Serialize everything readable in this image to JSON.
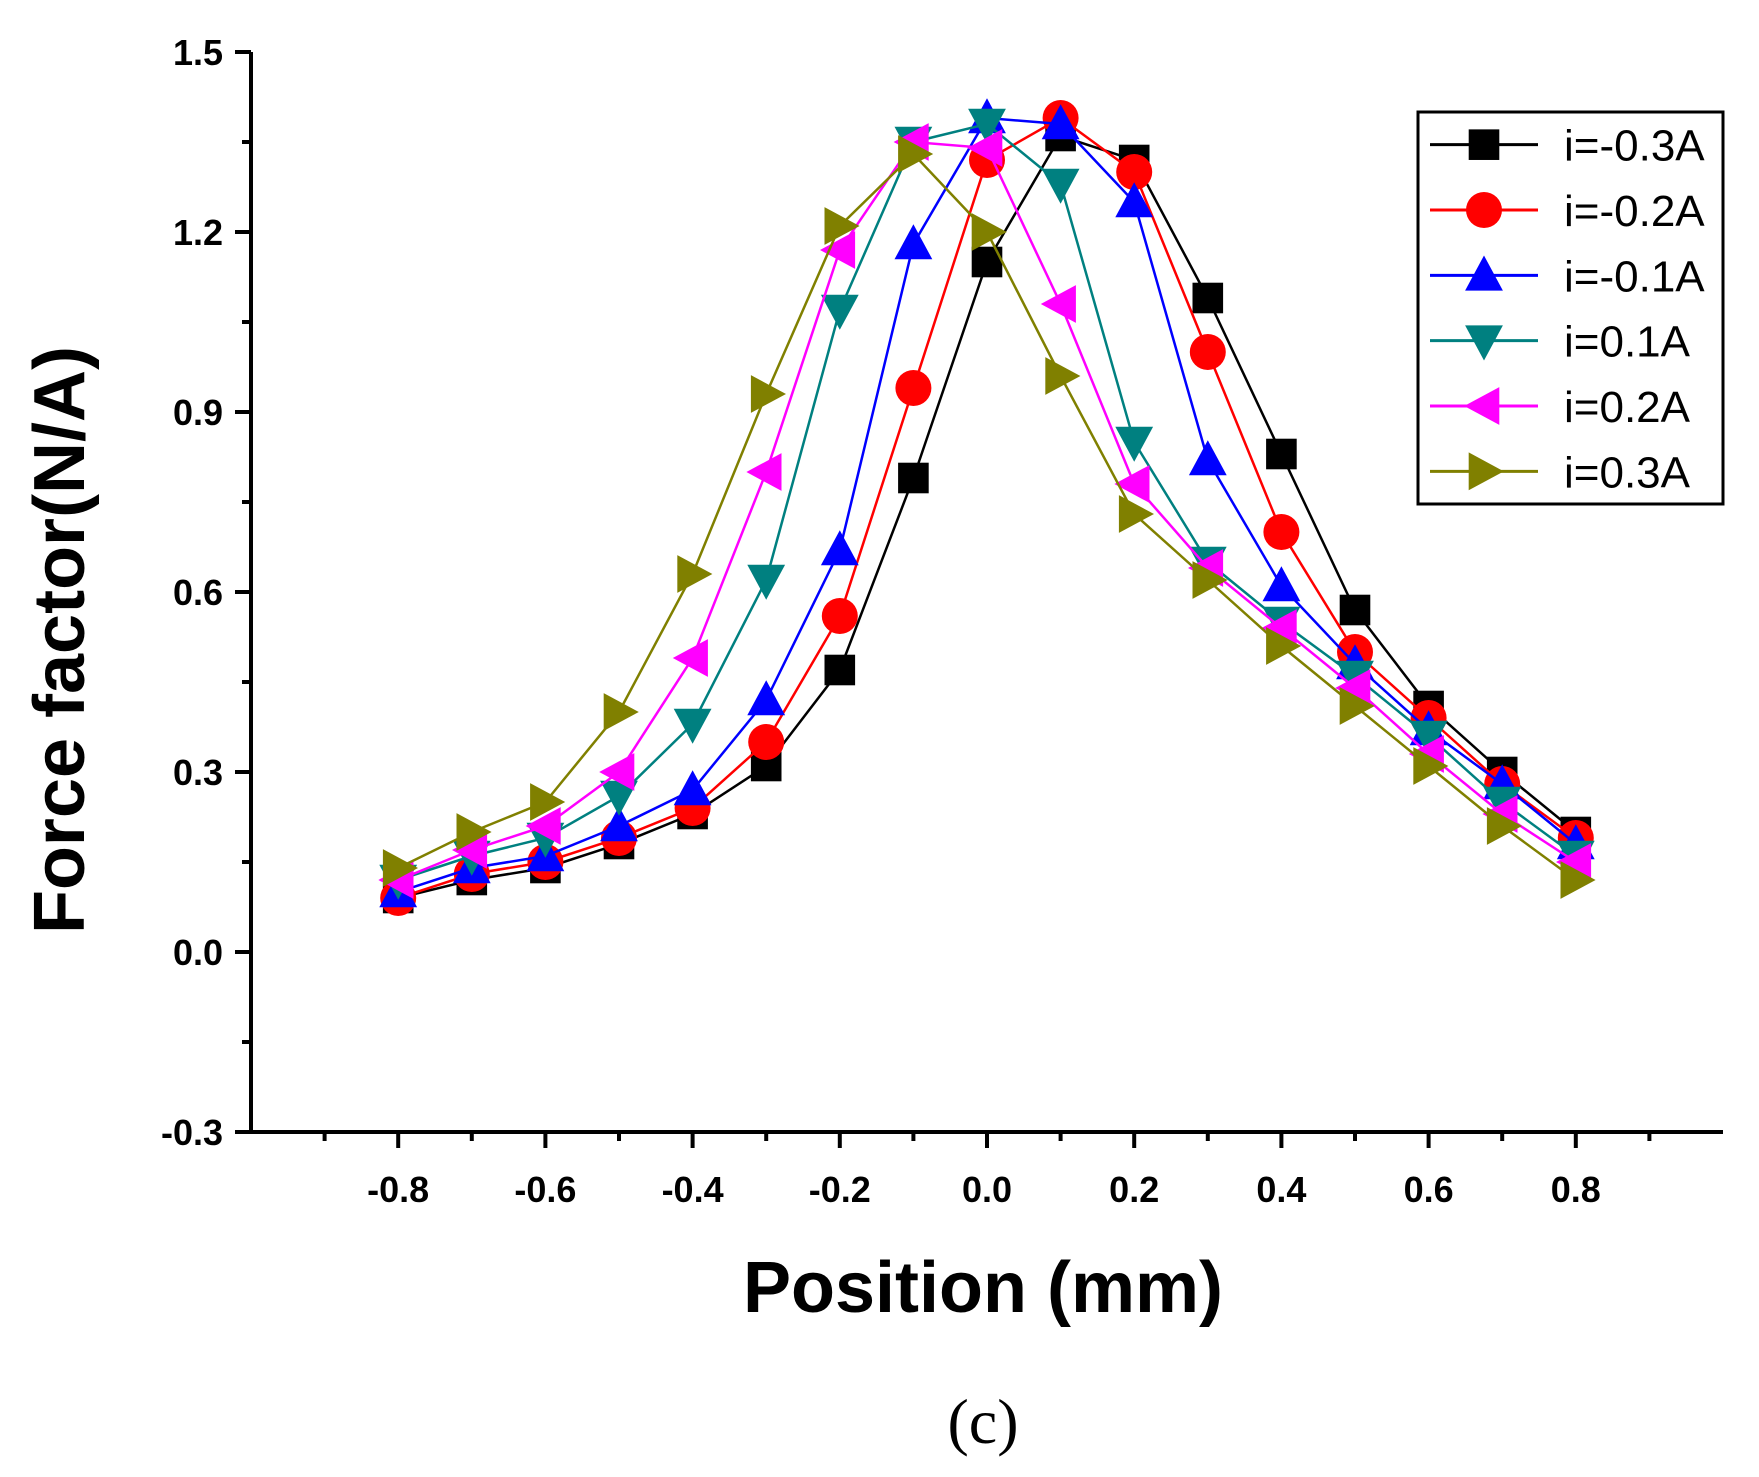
{
  "chart_data": {
    "type": "line",
    "title": "",
    "xlabel": "Position (mm)",
    "ylabel": "Force factor(N/A)",
    "caption": "(c)",
    "xlim": [
      -1.0,
      1.0
    ],
    "ylim": [
      -0.3,
      1.5
    ],
    "x_ticks": [
      -0.8,
      -0.6,
      -0.4,
      -0.2,
      0.0,
      0.2,
      0.4,
      0.6,
      0.8
    ],
    "x_tick_labels": [
      "-0.8",
      "-0.6",
      "-0.4",
      "-0.2",
      "0.0",
      "0.2",
      "0.4",
      "0.6",
      "0.8"
    ],
    "y_ticks": [
      -0.3,
      0.0,
      0.3,
      0.6,
      0.9,
      1.2,
      1.5
    ],
    "y_tick_labels": [
      "-0.3",
      "0.0",
      "0.3",
      "0.6",
      "0.9",
      "1.2",
      "1.5"
    ],
    "grid": false,
    "legend_position": "top-right",
    "x": [
      -0.8,
      -0.7,
      -0.6,
      -0.5,
      -0.4,
      -0.3,
      -0.2,
      -0.1,
      0.0,
      0.1,
      0.2,
      0.3,
      0.4,
      0.5,
      0.6,
      0.7,
      0.8
    ],
    "series": [
      {
        "name": "i=-0.3A",
        "color": "#000000",
        "marker": "square",
        "values": [
          0.09,
          0.12,
          0.14,
          0.18,
          0.23,
          0.31,
          0.47,
          0.79,
          1.15,
          1.36,
          1.32,
          1.09,
          0.83,
          0.57,
          0.41,
          0.3,
          0.2
        ]
      },
      {
        "name": "i=-0.2A",
        "color": "#ff0000",
        "marker": "circle",
        "values": [
          0.09,
          0.13,
          0.15,
          0.19,
          0.24,
          0.35,
          0.56,
          0.94,
          1.32,
          1.39,
          1.3,
          1.0,
          0.7,
          0.5,
          0.39,
          0.28,
          0.19
        ]
      },
      {
        "name": "i=-0.1A",
        "color": "#0000ff",
        "marker": "triangle-up",
        "values": [
          0.1,
          0.14,
          0.16,
          0.21,
          0.27,
          0.42,
          0.67,
          1.18,
          1.39,
          1.38,
          1.25,
          0.82,
          0.61,
          0.48,
          0.37,
          0.28,
          0.18
        ]
      },
      {
        "name": "i=0.1A",
        "color": "#008080",
        "marker": "triangle-down",
        "values": [
          0.12,
          0.16,
          0.19,
          0.26,
          0.38,
          0.62,
          1.07,
          1.35,
          1.38,
          1.28,
          0.85,
          0.65,
          0.55,
          0.46,
          0.36,
          0.25,
          0.16
        ]
      },
      {
        "name": "i=0.2A",
        "color": "#ff00ff",
        "marker": "triangle-left",
        "values": [
          0.12,
          0.17,
          0.21,
          0.3,
          0.49,
          0.8,
          1.17,
          1.35,
          1.34,
          1.08,
          0.78,
          0.64,
          0.54,
          0.44,
          0.33,
          0.23,
          0.15
        ]
      },
      {
        "name": "i=0.3A",
        "color": "#808000",
        "marker": "triangle-right",
        "values": [
          0.14,
          0.2,
          0.25,
          0.4,
          0.63,
          0.93,
          1.21,
          1.33,
          1.2,
          0.96,
          0.73,
          0.62,
          0.51,
          0.41,
          0.31,
          0.21,
          0.12
        ]
      }
    ]
  }
}
